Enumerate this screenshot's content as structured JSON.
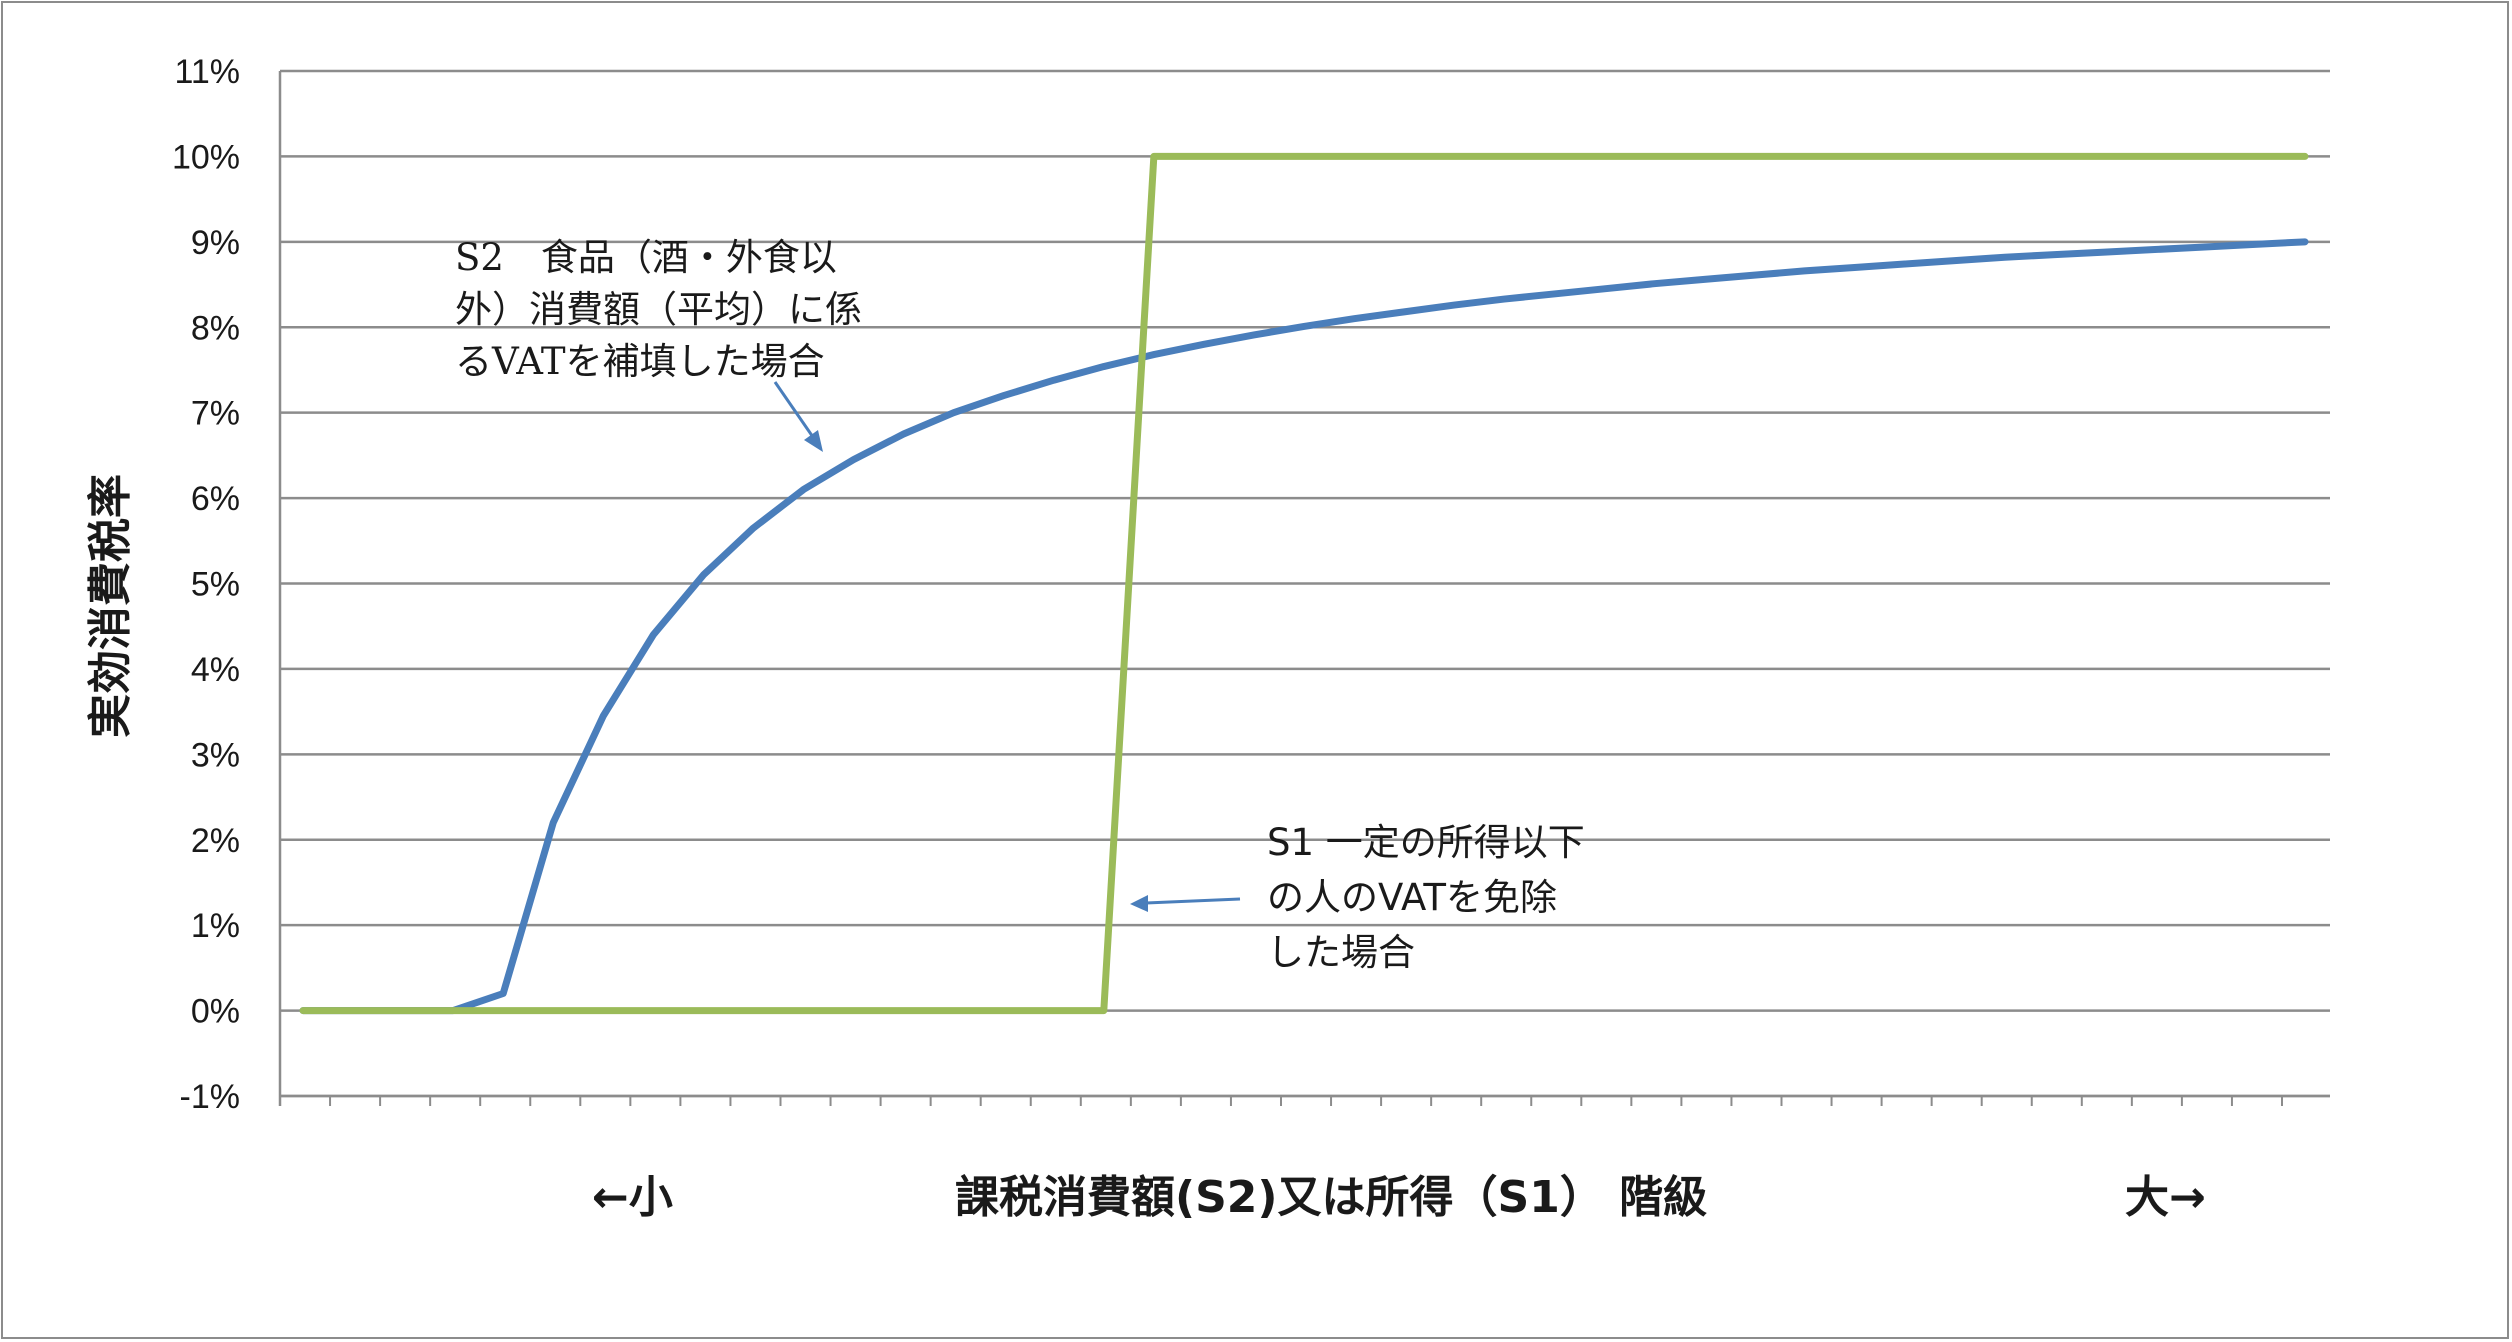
{
  "chart_data": {
    "type": "line",
    "ylabel": "実効消費税率",
    "xlabel": "課税消費額(S2)又は所得（S1） 階級",
    "x_left_label": "←小",
    "x_right_label": "大→",
    "ylim": [
      -0.01,
      0.11
    ],
    "y_ticks": [
      "11%",
      "10%",
      "9%",
      "8%",
      "7%",
      "6%",
      "5%",
      "4%",
      "3%",
      "2%",
      "1%",
      "0%",
      "-1%"
    ],
    "grid": true,
    "x": [
      1,
      2,
      3,
      4,
      5,
      6,
      7,
      8,
      9,
      10,
      11,
      12,
      13,
      14,
      15,
      16,
      17,
      18,
      19,
      20,
      21,
      22,
      23,
      24,
      25,
      26,
      27,
      28,
      29,
      30,
      31,
      32,
      33,
      34,
      35,
      36,
      37,
      38,
      39,
      40,
      41
    ],
    "series": [
      {
        "name": "S2 食品（酒・外食以外）消費額（平均）に係るVATを補填した場合",
        "color": "#4a7ebb",
        "values": [
          0,
          0,
          0,
          0,
          0.002,
          0.022,
          0.0345,
          0.044,
          0.051,
          0.0565,
          0.061,
          0.0645,
          0.0675,
          0.07,
          0.072,
          0.0738,
          0.0754,
          0.0768,
          0.078,
          0.0791,
          0.0801,
          0.081,
          0.0818,
          0.0826,
          0.0833,
          0.0839,
          0.0845,
          0.0851,
          0.0856,
          0.0861,
          0.0866,
          0.087,
          0.0874,
          0.0878,
          0.0882,
          0.0885,
          0.0888,
          0.0891,
          0.0894,
          0.0897,
          0.09
        ]
      },
      {
        "name": "S1 一定の所得以下の人のVATを免除した場合",
        "color": "#9bbb59",
        "values": [
          0,
          0,
          0,
          0,
          0,
          0,
          0,
          0,
          0,
          0,
          0,
          0,
          0,
          0,
          0,
          0,
          0,
          0.1,
          0.1,
          0.1,
          0.1,
          0.1,
          0.1,
          0.1,
          0.1,
          0.1,
          0.1,
          0.1,
          0.1,
          0.1,
          0.1,
          0.1,
          0.1,
          0.1,
          0.1,
          0.1,
          0.1,
          0.1,
          0.1,
          0.1,
          0.1
        ]
      }
    ],
    "annotations": [
      {
        "lines": [
          "S2　食品（酒・外食以",
          "外）消費額（平均）に係",
          "るVATを補填した場合"
        ],
        "series": 0
      },
      {
        "lines": [
          "S1 一定の所得以下",
          "の人のVATを免除",
          "した場合"
        ],
        "series": 1
      }
    ]
  }
}
